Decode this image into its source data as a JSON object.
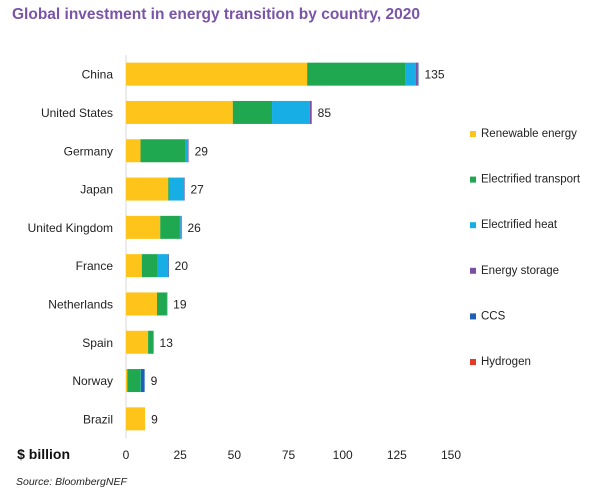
{
  "chart_data": {
    "type": "bar",
    "orientation": "horizontal",
    "stacked": true,
    "title": "Global investment in energy transition by country, 2020",
    "xlabel": "$ billion",
    "source": "Source: BloombergNEF",
    "xlim": [
      0,
      150
    ],
    "xticks": [
      "0",
      "25",
      "50",
      "75",
      "100",
      "125",
      "150"
    ],
    "grid": false,
    "legend_position": "right",
    "categories": [
      "China",
      "United States",
      "Germany",
      "Japan",
      "United Kingdom",
      "France",
      "Netherlands",
      "Spain",
      "Norway",
      "Brazil"
    ],
    "totals": [
      "135",
      "85",
      "29",
      "27",
      "26",
      "20",
      "19",
      "13",
      "9",
      "9"
    ],
    "series": [
      {
        "name": "Renewable energy",
        "color": "#ffc41a",
        "values": [
          83.6,
          49.3,
          6.7,
          19.5,
          15.8,
          7.3,
          14.3,
          10.2,
          0.6,
          8.8
        ]
      },
      {
        "name": "Electrified transport",
        "color": "#1fa84f",
        "values": [
          45.5,
          18.1,
          20.9,
          0.6,
          9.1,
          7.4,
          4.6,
          2.4,
          6.2,
          0.0
        ]
      },
      {
        "name": "Electrified heat",
        "color": "#17aee6",
        "values": [
          4.6,
          17.5,
          1.1,
          6.8,
          0.4,
          4.9,
          0.1,
          0.1,
          0.1,
          0.0
        ]
      },
      {
        "name": "Energy storage",
        "color": "#7e4fa0",
        "values": [
          1.0,
          0.5,
          0.2,
          0.1,
          0.2,
          0.1,
          0.0,
          0.0,
          0.0,
          0.0
        ]
      },
      {
        "name": "CCS",
        "color": "#1f5fb5",
        "values": [
          0.3,
          0.3,
          0.0,
          0.0,
          0.1,
          0.0,
          0.0,
          0.0,
          1.7,
          0.0
        ]
      },
      {
        "name": "Hydrogen",
        "color": "#e63a25",
        "values": [
          0.0,
          0.0,
          0.0,
          0.0,
          0.0,
          0.0,
          0.0,
          0.0,
          0.0,
          0.0
        ]
      }
    ]
  }
}
